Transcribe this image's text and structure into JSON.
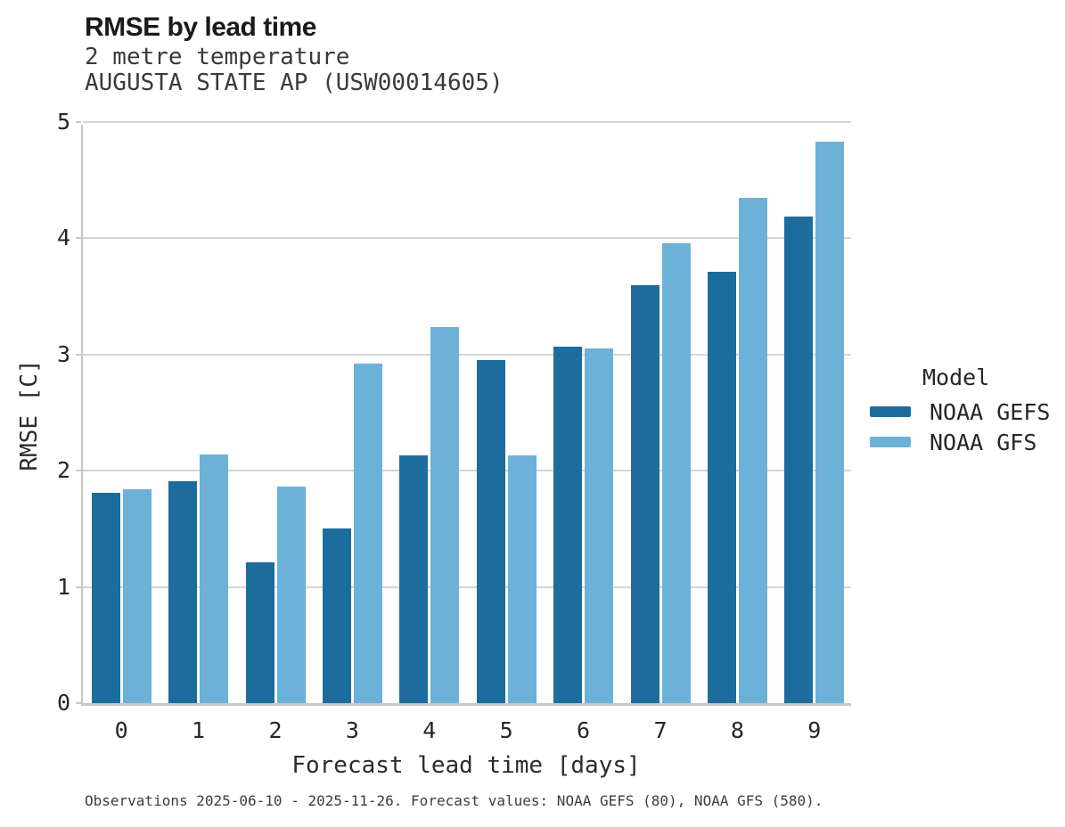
{
  "header": {
    "title": "RMSE by lead time",
    "subtitle1": "2 metre temperature",
    "subtitle2": "AUGUSTA STATE AP (USW00014605)"
  },
  "chart_data": {
    "type": "bar",
    "title": "RMSE by lead time",
    "subtitle": [
      "2 metre temperature",
      "AUGUSTA STATE AP (USW00014605)"
    ],
    "categories": [
      "0",
      "1",
      "2",
      "3",
      "4",
      "5",
      "6",
      "7",
      "8",
      "9"
    ],
    "series": [
      {
        "name": "NOAA GEFS",
        "color": "#1c6d9e",
        "values": [
          1.81,
          1.91,
          1.21,
          1.5,
          2.13,
          2.95,
          3.07,
          3.6,
          3.71,
          4.19
        ]
      },
      {
        "name": "NOAA GFS",
        "color": "#6cb1d8",
        "values": [
          1.84,
          2.14,
          1.86,
          2.92,
          3.24,
          2.13,
          3.05,
          3.96,
          4.35,
          4.83
        ]
      }
    ],
    "xlabel": "Forecast lead time [days]",
    "ylabel": "RMSE [C]",
    "ylim": [
      0,
      5
    ],
    "yticks": [
      "0",
      "1",
      "2",
      "3",
      "4",
      "5"
    ],
    "grid": true,
    "legend_position": "right"
  },
  "legend": {
    "title": "Model",
    "entries": [
      {
        "label": "NOAA GEFS",
        "color": "#1c6d9e"
      },
      {
        "label": "NOAA GFS",
        "color": "#6cb1d8"
      }
    ]
  },
  "footnote": "Observations 2025-06-10 - 2025-11-26. Forecast values: NOAA GEFS (80), NOAA GFS (580).",
  "colors": {
    "gefs": "#1c6d9e",
    "gfs": "#6cb1d8",
    "gridline": "#d5d5d5",
    "axis": "#c6c6c6",
    "title_text": "#1a1a1a",
    "tick_text": "#262626"
  }
}
